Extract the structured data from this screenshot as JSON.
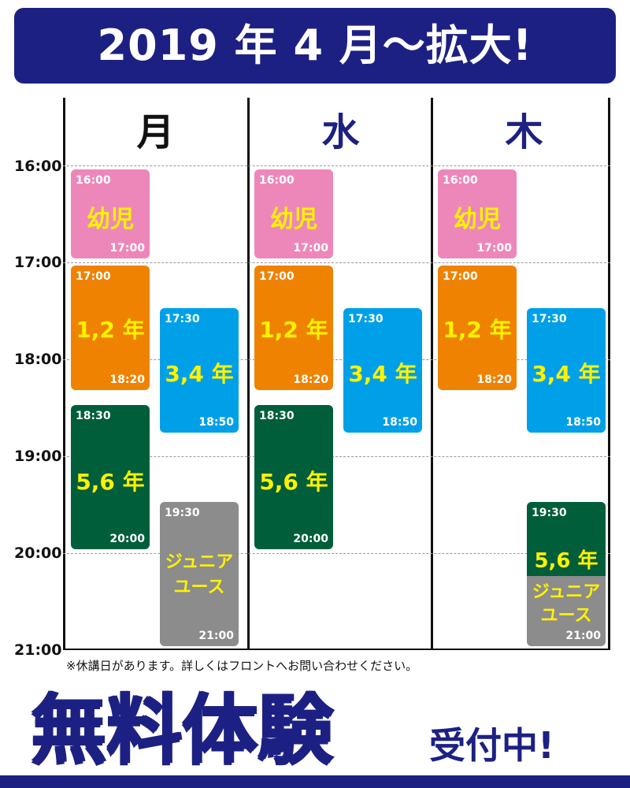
{
  "banner": {
    "text": "2019 年 4 月〜拡大!"
  },
  "days": [
    {
      "label": "月",
      "color": "#111111"
    },
    {
      "label": "水",
      "color": "#1d2083"
    },
    {
      "label": "木",
      "color": "#1d2083"
    }
  ],
  "times": [
    "16:00",
    "17:00",
    "18:00",
    "19:00",
    "20:00",
    "21:00"
  ],
  "colors": {
    "pink": "#ee87b9",
    "orange": "#ef8200",
    "blue": "#00a0e9",
    "green": "#005e3b",
    "gray": "#8c8c8c",
    "label_yellow": "#fff200",
    "navy": "#1d2083"
  },
  "schedule": {
    "mon": {
      "youji": {
        "start": "16:00",
        "name": "幼児",
        "end": "17:00"
      },
      "g12": {
        "start": "17:00",
        "name": "1,2 年",
        "end": "18:20"
      },
      "g34": {
        "start": "17:30",
        "name": "3,4 年",
        "end": "18:50"
      },
      "g56": {
        "start": "18:30",
        "name": "5,6 年",
        "end": "20:00"
      },
      "junior": {
        "start": "19:30",
        "name_line1": "ジュニア",
        "name_line2": "ユース",
        "end": "21:00"
      }
    },
    "wed": {
      "youji": {
        "start": "16:00",
        "name": "幼児",
        "end": "17:00"
      },
      "g12": {
        "start": "17:00",
        "name": "1,2 年",
        "end": "18:20"
      },
      "g34": {
        "start": "17:30",
        "name": "3,4 年",
        "end": "18:50"
      },
      "g56": {
        "start": "18:30",
        "name": "5,6 年",
        "end": "20:00"
      }
    },
    "thu": {
      "youji": {
        "start": "16:00",
        "name": "幼児",
        "end": "17:00"
      },
      "g12": {
        "start": "17:00",
        "name": "1,2 年",
        "end": "18:20"
      },
      "g34": {
        "start": "17:30",
        "name": "3,4 年",
        "end": "18:50"
      },
      "combo": {
        "start": "19:30",
        "name_top": "5,6 年",
        "name_line1": "ジュニア",
        "name_line2": "ユース",
        "end": "21:00"
      }
    }
  },
  "note": "※休講日があります。詳しくはフロントへお問い合わせください。",
  "footer": {
    "free_trial": "無料体験",
    "accepting": "受付中!"
  }
}
